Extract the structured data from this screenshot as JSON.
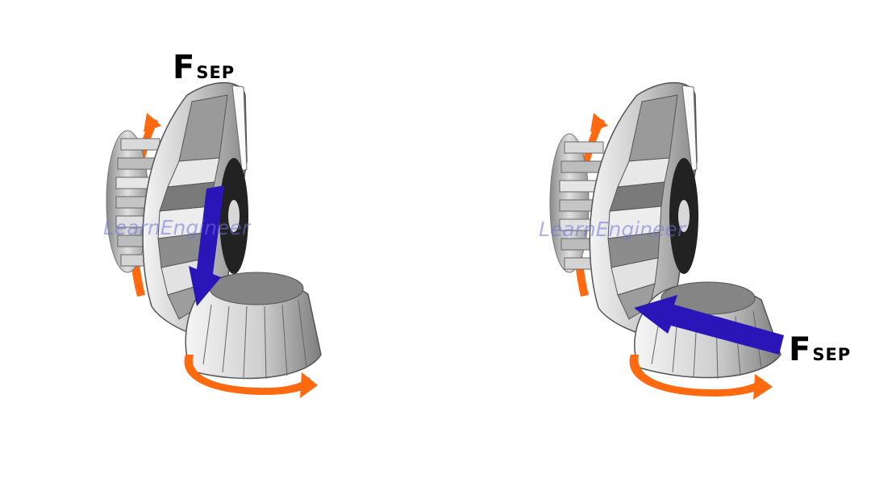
{
  "panels": [
    {
      "label_main": "F",
      "label_sub": "SEP",
      "watermark": "LearnEngineer"
    },
    {
      "label_main": "F",
      "label_sub": "SEP",
      "watermark": "LearnEngineer"
    }
  ],
  "colors": {
    "force_arrow": "#2a16b8",
    "rotation_arrow": "#ff6a10",
    "gear_light": "#f2f2f2",
    "gear_mid": "#bdbdbd",
    "gear_dark": "#6d6d6d",
    "hub": "#222222"
  },
  "icons": [
    "force-arrow-icon",
    "rotation-arrow-icon",
    "bevel-gear-icon",
    "pinion-gear-icon"
  ]
}
